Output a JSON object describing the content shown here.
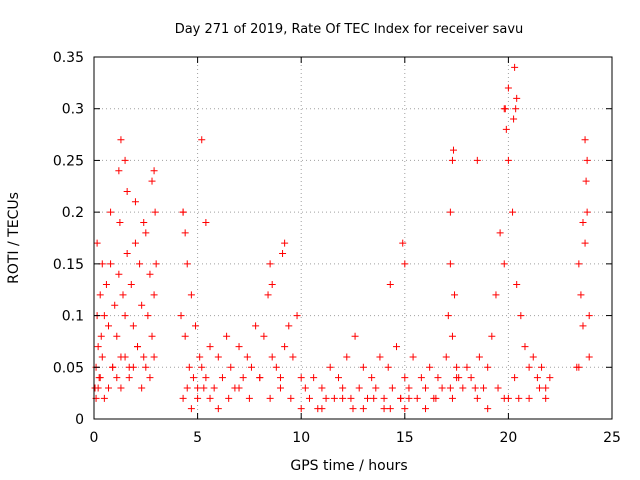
{
  "chart_data": {
    "type": "scatter",
    "title": "Day 271 of 2019, Rate Of TEC Index for receiver savu",
    "xlabel": "GPS time / hours",
    "ylabel": "ROTI / TECUs",
    "xlim": [
      0,
      25
    ],
    "ylim": [
      0,
      0.35
    ],
    "x_ticks": [
      "0",
      "5",
      "10",
      "15",
      "20",
      "25"
    ],
    "y_ticks": [
      "0",
      "0.05",
      "0.1",
      "0.15",
      "0.2",
      "0.25",
      "0.3",
      "0.35"
    ],
    "grid": true,
    "marker": "+",
    "color": "#ff0000",
    "series": [
      {
        "x": [
          0.05,
          0.1,
          0.15,
          0.2,
          0.25,
          0.3,
          0.35,
          0.4,
          0.5,
          0.6,
          0.7,
          0.8,
          0.9,
          1.0,
          1.1,
          1.2,
          1.25,
          1.3,
          1.4,
          1.5,
          1.6,
          1.7,
          1.8,
          1.9,
          2.0,
          2.1,
          2.2,
          2.3,
          2.4,
          2.5,
          2.6,
          2.7,
          2.8,
          2.9,
          3.0,
          0.1,
          0.2,
          0.3,
          0.5,
          0.7,
          0.9,
          1.1,
          1.3,
          1.5,
          1.7,
          1.9,
          2.1,
          2.3,
          2.5,
          2.7,
          2.9,
          0.15,
          0.4,
          0.8,
          1.2,
          1.6,
          2.0,
          2.4,
          2.8,
          1.3,
          1.5,
          2.9,
          2.95,
          4.2,
          4.3,
          4.4,
          4.5,
          4.6,
          4.7,
          4.8,
          4.9,
          5.0,
          5.1,
          5.2,
          5.4,
          5.6,
          5.8,
          6.0,
          6.2,
          6.4,
          6.6,
          6.8,
          7.0,
          7.2,
          7.4,
          7.6,
          7.8,
          8.0,
          8.2,
          8.4,
          8.6,
          8.8,
          9.0,
          9.2,
          9.4,
          9.6,
          9.8,
          10.0,
          4.3,
          4.5,
          4.7,
          5.0,
          5.3,
          5.6,
          6.0,
          6.5,
          7.0,
          7.5,
          8.0,
          8.5,
          9.0,
          9.5,
          10.0,
          4.3,
          4.4,
          5.2,
          5.4,
          8.5,
          8.6,
          9.1,
          9.2,
          10.2,
          10.4,
          10.6,
          10.8,
          11.0,
          11.2,
          11.4,
          11.6,
          11.8,
          12.0,
          12.2,
          12.4,
          12.6,
          12.8,
          13.0,
          13.2,
          13.4,
          13.6,
          13.8,
          14.0,
          14.2,
          14.4,
          14.6,
          14.8,
          15.0,
          15.2,
          15.4,
          15.6,
          15.8,
          16.0,
          16.2,
          16.4,
          16.6,
          16.8,
          11.0,
          12.0,
          12.5,
          13.0,
          13.5,
          14.0,
          14.3,
          14.8,
          15.0,
          15.2,
          16.0,
          16.5,
          14.9,
          15.0,
          14.3,
          17.0,
          17.1,
          17.2,
          17.3,
          17.4,
          17.5,
          17.6,
          17.8,
          18.0,
          18.2,
          18.4,
          18.6,
          18.8,
          19.0,
          19.2,
          19.4,
          19.6,
          19.8,
          20.0,
          20.2,
          20.4,
          20.6,
          20.8,
          21.0,
          21.2,
          21.4,
          21.6,
          21.8,
          22.0,
          17.2,
          17.3,
          17.5,
          18.5,
          19.0,
          19.5,
          19.8,
          20.0,
          20.3,
          20.5,
          21.0,
          21.5,
          21.8,
          17.2,
          17.3,
          17.35,
          19.8,
          19.85,
          19.9,
          20.0,
          20.25,
          20.3,
          20.35,
          20.4,
          18.5,
          23.3,
          23.4,
          23.5,
          23.6,
          23.7,
          23.8,
          23.9,
          23.4,
          23.6,
          23.8,
          23.9,
          23.7,
          23.75
        ],
        "y": [
          0.03,
          0.05,
          0.1,
          0.07,
          0.04,
          0.12,
          0.08,
          0.06,
          0.1,
          0.13,
          0.09,
          0.15,
          0.05,
          0.11,
          0.08,
          0.14,
          0.19,
          0.06,
          0.12,
          0.1,
          0.16,
          0.05,
          0.13,
          0.09,
          0.17,
          0.07,
          0.15,
          0.11,
          0.06,
          0.18,
          0.1,
          0.14,
          0.08,
          0.12,
          0.15,
          0.02,
          0.03,
          0.04,
          0.02,
          0.03,
          0.05,
          0.04,
          0.03,
          0.06,
          0.04,
          0.05,
          0.07,
          0.03,
          0.05,
          0.04,
          0.06,
          0.17,
          0.15,
          0.2,
          0.24,
          0.22,
          0.21,
          0.19,
          0.23,
          0.27,
          0.25,
          0.24,
          0.2,
          0.1,
          0.2,
          0.08,
          0.15,
          0.05,
          0.12,
          0.04,
          0.09,
          0.03,
          0.06,
          0.05,
          0.04,
          0.07,
          0.03,
          0.06,
          0.04,
          0.08,
          0.05,
          0.03,
          0.07,
          0.04,
          0.06,
          0.05,
          0.09,
          0.04,
          0.08,
          0.12,
          0.06,
          0.05,
          0.04,
          0.07,
          0.09,
          0.06,
          0.1,
          0.04,
          0.02,
          0.03,
          0.01,
          0.02,
          0.03,
          0.02,
          0.01,
          0.02,
          0.03,
          0.02,
          0.04,
          0.02,
          0.03,
          0.02,
          0.01,
          0.2,
          0.18,
          0.27,
          0.19,
          0.15,
          0.13,
          0.16,
          0.17,
          0.03,
          0.02,
          0.04,
          0.01,
          0.03,
          0.02,
          0.05,
          0.02,
          0.04,
          0.03,
          0.06,
          0.02,
          0.08,
          0.03,
          0.05,
          0.02,
          0.04,
          0.03,
          0.06,
          0.02,
          0.05,
          0.03,
          0.07,
          0.02,
          0.04,
          0.03,
          0.06,
          0.02,
          0.04,
          0.03,
          0.05,
          0.02,
          0.04,
          0.03,
          0.01,
          0.02,
          0.01,
          0.01,
          0.02,
          0.01,
          0.01,
          0.02,
          0.01,
          0.02,
          0.01,
          0.02,
          0.17,
          0.15,
          0.13,
          0.06,
          0.1,
          0.15,
          0.08,
          0.12,
          0.05,
          0.04,
          0.03,
          0.05,
          0.04,
          0.03,
          0.06,
          0.03,
          0.05,
          0.08,
          0.12,
          0.18,
          0.15,
          0.25,
          0.2,
          0.13,
          0.1,
          0.07,
          0.05,
          0.06,
          0.04,
          0.05,
          0.03,
          0.04,
          0.03,
          0.02,
          0.04,
          0.02,
          0.01,
          0.03,
          0.02,
          0.02,
          0.04,
          0.02,
          0.02,
          0.03,
          0.02,
          0.2,
          0.25,
          0.26,
          0.3,
          0.3,
          0.28,
          0.32,
          0.29,
          0.34,
          0.3,
          0.31,
          0.25,
          0.05,
          0.15,
          0.12,
          0.09,
          0.17,
          0.2,
          0.06,
          0.05,
          0.19,
          0.25,
          0.1,
          0.27,
          0.23
        ]
      }
    ]
  }
}
